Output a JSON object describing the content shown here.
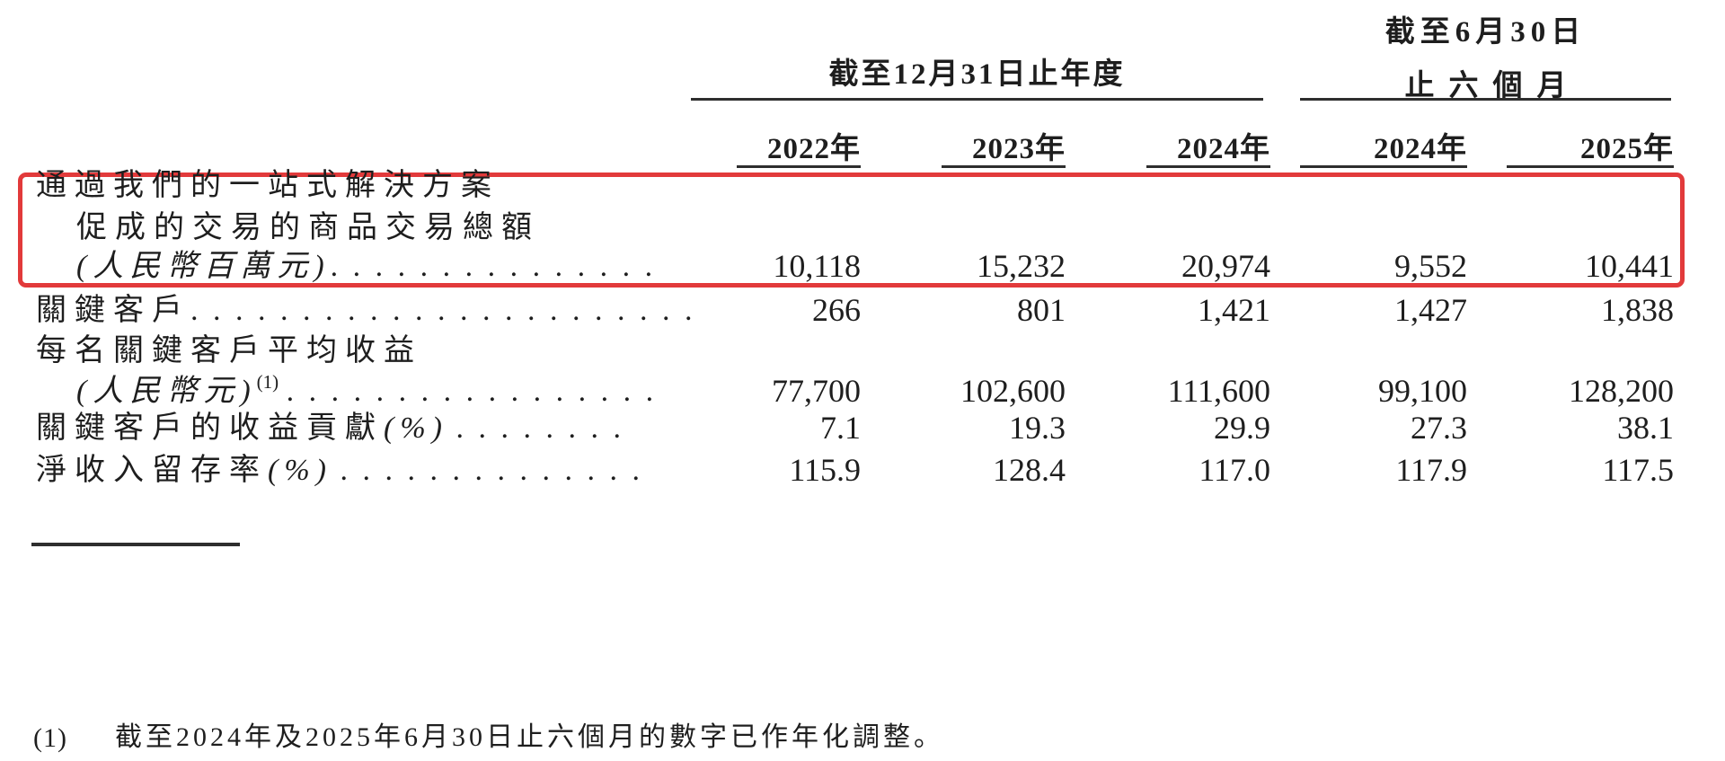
{
  "page": {
    "background": "#ffffff",
    "text_color": "#1e1e1e",
    "rule_color": "#2e2e2e",
    "highlight_color": "#e23a3b"
  },
  "header": {
    "period_annual": {
      "title": "截至12月31日止年度"
    },
    "period_interim": {
      "line1": "截至6月30日",
      "line2": "止六個月"
    },
    "year_columns": [
      "2022年",
      "2023年",
      "2024年",
      "2024年",
      "2025年"
    ]
  },
  "table": {
    "rows": [
      {
        "id": "gmv",
        "highlighted": true,
        "lines": [
          {
            "text": "通過我們的一站式解決方案"
          },
          {
            "text": "促成的交易的商品交易總額"
          },
          {
            "italic": "(人民幣百萬元)",
            "dots": ". . . . . . . . . . . . . . ."
          }
        ],
        "values": [
          "10,118",
          "15,232",
          "20,974",
          "9,552",
          "10,441"
        ]
      },
      {
        "id": "key-accounts",
        "highlighted": false,
        "lines": [
          {
            "text": "關鍵客戶",
            "dots": ". . . . . . . . . . . . . . . . . . . . . . ."
          }
        ],
        "values": [
          "266",
          "801",
          "1,421",
          "1,427",
          "1,838"
        ]
      },
      {
        "id": "avg-revenue-per-key-account",
        "highlighted": false,
        "lines": [
          {
            "text": "每名關鍵客戶平均收益"
          },
          {
            "italic": "(人民幣元)",
            "sup": "(1)",
            "dots": ". . . . . . . . . . . . . . . . ."
          }
        ],
        "values": [
          "77,700",
          "102,600",
          "111,600",
          "99,100",
          "128,200"
        ]
      },
      {
        "id": "key-account-revenue-contribution",
        "highlighted": false,
        "lines": [
          {
            "text": "關鍵客戶的收益貢獻",
            "italic": "(%)",
            "dots": ". . . . . . . ."
          }
        ],
        "values": [
          "7.1",
          "19.3",
          "29.9",
          "27.3",
          "38.1"
        ]
      },
      {
        "id": "net-revenue-retention",
        "highlighted": false,
        "lines": [
          {
            "text": "淨收入留存率",
            "italic": "(%)",
            "dots": ". . . . . . . . . . . . . ."
          }
        ],
        "values": [
          "115.9",
          "128.4",
          "117.0",
          "117.9",
          "117.5"
        ]
      }
    ]
  },
  "footnote": {
    "marker": "(1)",
    "text": "截至2024年及2025年6月30日止六個月的數字已作年化調整。"
  }
}
